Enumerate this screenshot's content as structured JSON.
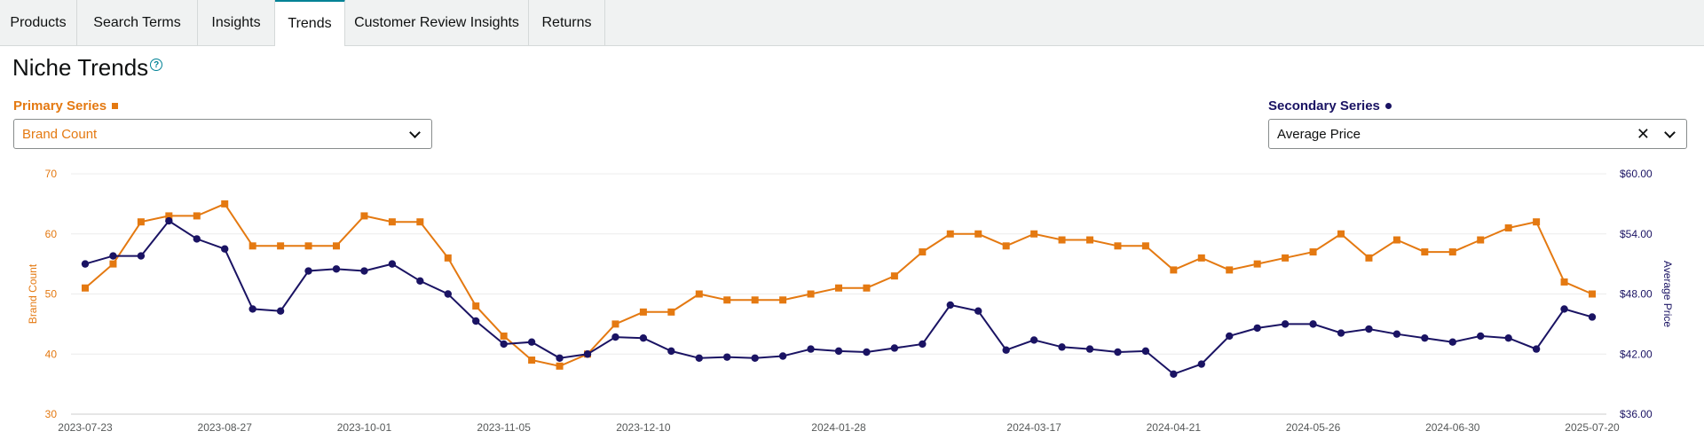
{
  "tabs": [
    {
      "label": "Products",
      "active": false
    },
    {
      "label": "Search Terms",
      "active": false
    },
    {
      "label": "Insights",
      "active": false
    },
    {
      "label": "Trends",
      "active": true
    },
    {
      "label": "Customer Review Insights",
      "active": false
    },
    {
      "label": "Returns",
      "active": false
    }
  ],
  "page_title": "Niche Trends",
  "help_icon": "?",
  "primary": {
    "label": "Primary Series",
    "value": "Brand Count",
    "color": "#e47911"
  },
  "secondary": {
    "label": "Secondary Series",
    "value": "Average Price",
    "clear": "✕",
    "color": "#1a1363"
  },
  "chart_data": {
    "type": "line",
    "x": [
      "2023-07-23",
      "2023-07-30",
      "2023-08-06",
      "2023-08-13",
      "2023-08-20",
      "2023-08-27",
      "2023-09-03",
      "2023-09-10",
      "2023-09-17",
      "2023-09-24",
      "2023-10-01",
      "2023-10-08",
      "2023-10-15",
      "2023-10-22",
      "2023-10-29",
      "2023-11-05",
      "2023-11-12",
      "2023-11-19",
      "2023-11-26",
      "2023-12-03",
      "2023-12-10",
      "2023-12-17",
      "2023-12-24",
      "2023-12-31",
      "2024-01-07",
      "2024-01-14",
      "2024-01-21",
      "2024-01-28",
      "2024-02-04",
      "2024-02-11",
      "2024-02-18",
      "2024-02-25",
      "2024-03-03",
      "2024-03-10",
      "2024-03-17",
      "2024-03-24",
      "2024-03-31",
      "2024-04-07",
      "2024-04-14",
      "2024-04-21",
      "2024-04-28",
      "2024-05-05",
      "2024-05-12",
      "2024-05-19",
      "2024-05-26",
      "2024-06-02",
      "2024-06-09",
      "2024-06-16",
      "2024-06-23",
      "2024-06-30",
      "2024-07-07",
      "2024-07-14",
      "2024-07-21",
      "2025-07-13",
      "2025-07-20"
    ],
    "x_ticks": [
      "2023-07-23",
      "2023-08-27",
      "2023-10-01",
      "2023-11-05",
      "2023-12-10",
      "2024-01-28",
      "2024-03-17",
      "2024-04-21",
      "2024-05-26",
      "2024-06-30",
      "2025-07-20"
    ],
    "series": [
      {
        "name": "Brand Count",
        "axis": "left",
        "marker": "square",
        "color": "#e47911",
        "values": [
          51,
          55,
          62,
          63,
          63,
          65,
          58,
          58,
          58,
          58,
          63,
          62,
          62,
          56,
          48,
          43,
          39,
          38,
          40,
          45,
          47,
          47,
          50,
          49,
          49,
          49,
          50,
          51,
          51,
          53,
          57,
          60,
          60,
          58,
          60,
          59,
          59,
          58,
          58,
          54,
          56,
          54,
          55,
          56,
          57,
          60,
          56,
          59,
          57,
          57,
          59,
          61,
          62,
          52,
          50
        ]
      },
      {
        "name": "Average Price",
        "axis": "right",
        "marker": "circle",
        "color": "#1a1363",
        "values": [
          51.0,
          51.8,
          51.8,
          55.3,
          53.5,
          52.5,
          46.5,
          46.3,
          50.3,
          50.5,
          50.3,
          51.0,
          49.3,
          48.0,
          45.3,
          43.0,
          43.2,
          41.6,
          42.0,
          43.7,
          43.6,
          42.3,
          41.6,
          41.7,
          41.6,
          41.8,
          42.5,
          42.3,
          42.2,
          42.6,
          43.0,
          46.9,
          46.3,
          42.4,
          43.4,
          42.7,
          42.5,
          42.2,
          42.3,
          40.0,
          41.0,
          43.8,
          44.6,
          45.0,
          45.0,
          44.1,
          44.5,
          44.0,
          43.6,
          43.2,
          43.8,
          43.6,
          42.5,
          46.5,
          45.7
        ]
      }
    ],
    "y_left": {
      "label": "Brand Count",
      "min": 30,
      "max": 70,
      "ticks": [
        "30",
        "40",
        "50",
        "60",
        "70"
      ]
    },
    "y_right": {
      "label": "Average Price",
      "min": 36,
      "max": 60,
      "ticks": [
        "$36.00",
        "$42.00",
        "$48.00",
        "$54.00",
        "$60.00"
      ]
    },
    "grid": true
  }
}
